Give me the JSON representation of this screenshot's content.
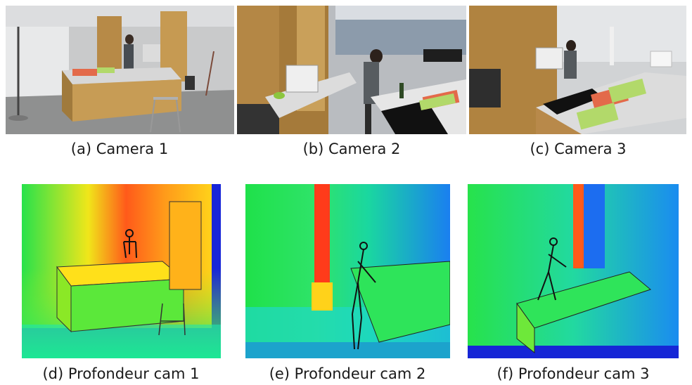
{
  "figure": {
    "captions": {
      "a": "(a) Camera 1",
      "b": "(b) Camera 2",
      "c": "(c) Camera 3",
      "d": "(d) Profondeur cam 1",
      "e": "(e) Profondeur cam 2",
      "f": "(f) Profondeur cam 3"
    }
  }
}
